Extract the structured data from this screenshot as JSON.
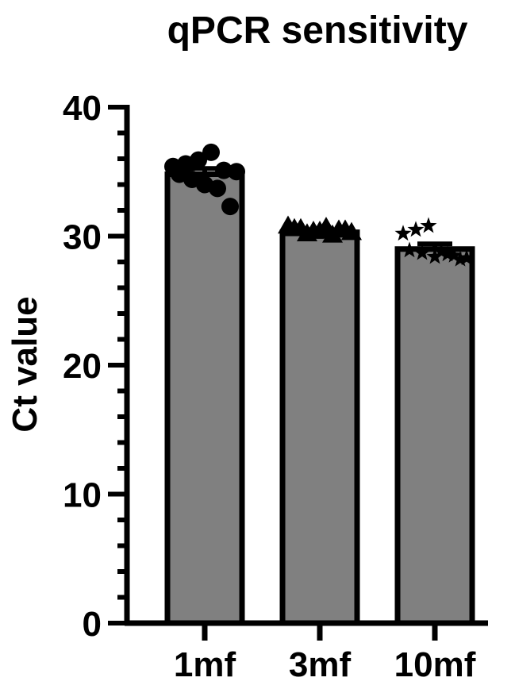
{
  "chart_data": {
    "type": "bar",
    "title": "qPCR sensitivity",
    "ylabel": "Ct value",
    "xlabel": "",
    "ylim": [
      0,
      40
    ],
    "yticks": [
      0,
      10,
      20,
      30,
      40
    ],
    "categories": [
      "1mf",
      "3mf",
      "10mf"
    ],
    "values": [
      34.8,
      30.3,
      29.0
    ],
    "sem": [
      0.45,
      0.15,
      0.4
    ],
    "bar_color": "#808080",
    "points": [
      {
        "marker": "circle",
        "values": [
          35.4,
          35.6,
          35.9,
          36.5,
          35.1,
          35.0,
          34.8,
          34.4,
          34.0,
          33.7,
          32.3
        ]
      },
      {
        "marker": "triangle",
        "values": [
          30.8,
          30.6,
          30.4,
          30.7,
          30.5,
          30.3,
          30.6,
          30.2,
          30.4,
          30.1,
          30.5
        ]
      },
      {
        "marker": "star",
        "values": [
          30.2,
          30.5,
          30.8,
          28.8,
          28.5,
          28.3,
          28.9,
          28.7,
          28.4,
          28.6,
          28.2
        ]
      }
    ]
  }
}
